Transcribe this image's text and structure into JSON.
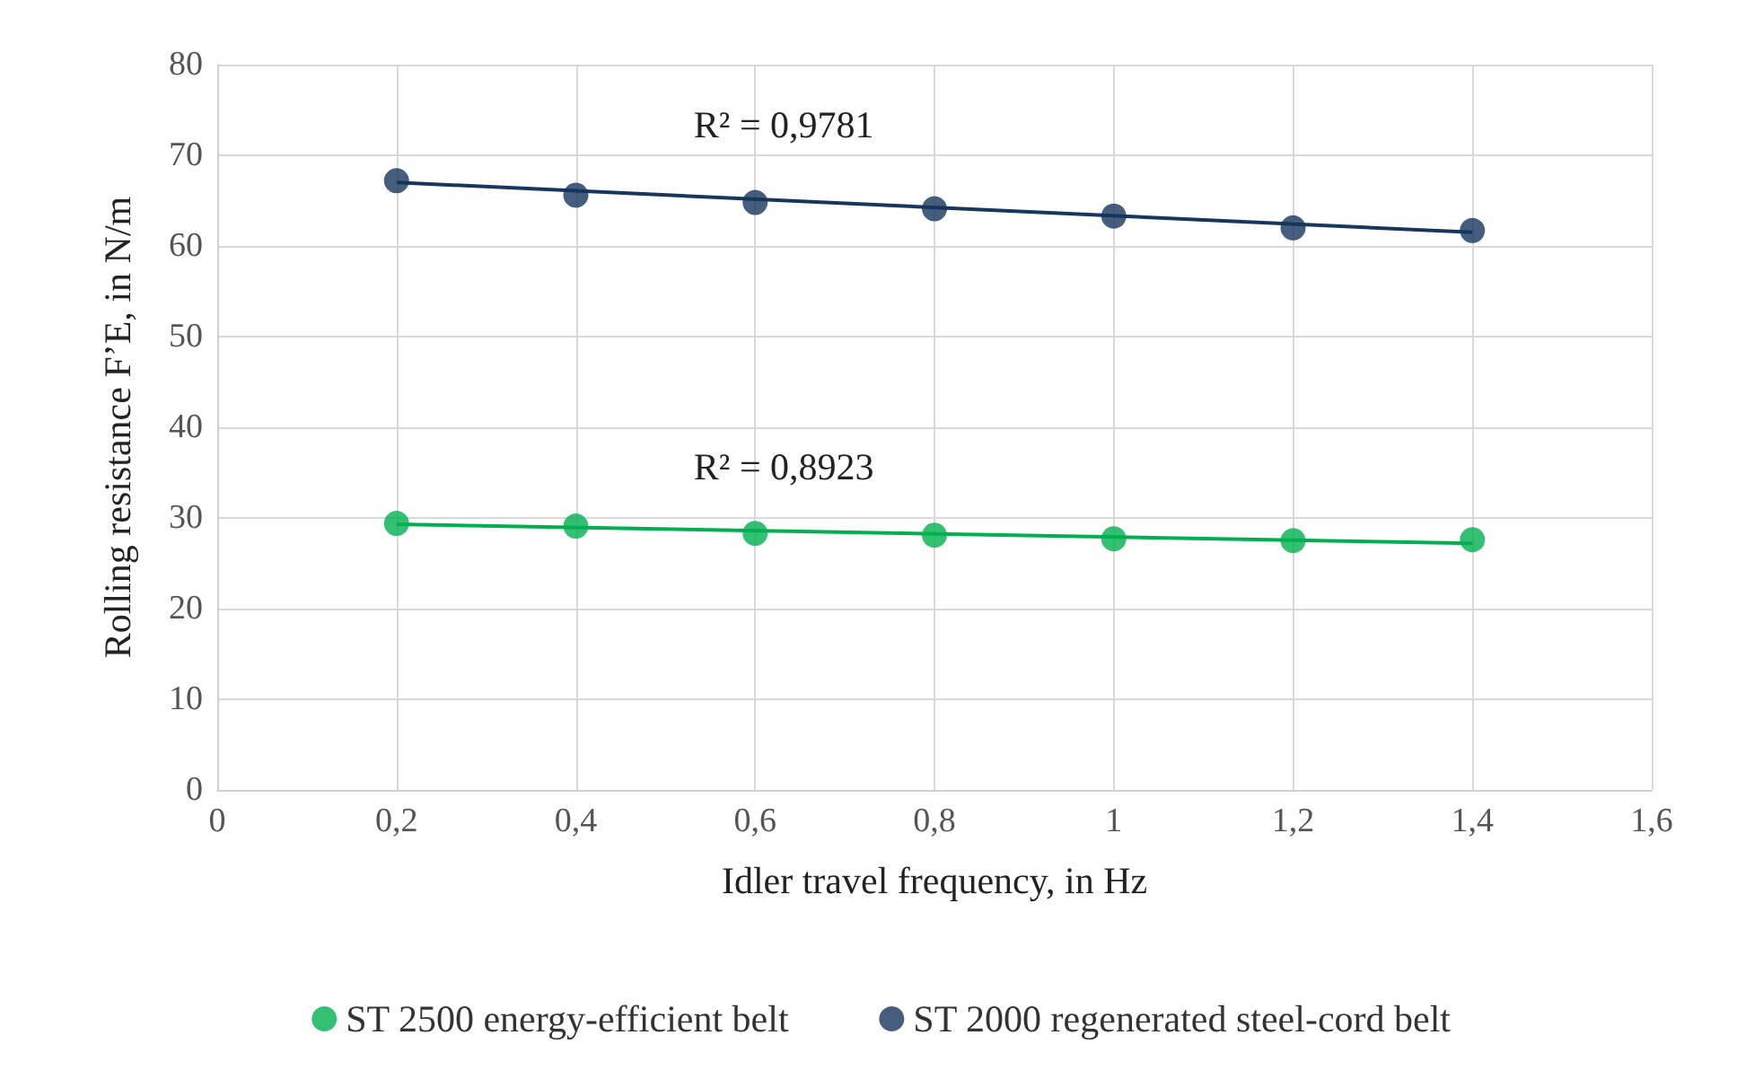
{
  "chart_data": {
    "type": "scatter",
    "xlabel": "Idler travel frequency, in Hz",
    "ylabel": "Rolling resistance F’E, in N/m",
    "x": [
      0.2,
      0.4,
      0.6,
      0.8,
      1.0,
      1.2,
      1.4
    ],
    "series": [
      {
        "name": "ST 2500 energy-efficient belt",
        "color": "#00b050",
        "values": [
          29.4,
          29.1,
          28.3,
          28.1,
          27.7,
          27.5,
          27.6
        ]
      },
      {
        "name": "ST 2000 regenerated steel-cord belt",
        "color": "#17365d",
        "values": [
          67.2,
          65.6,
          64.8,
          64.1,
          63.3,
          62.0,
          61.7
        ]
      },
      {
        "type": "line",
        "color": "#00b050",
        "marker": "none",
        "values": [
          29.3,
          null,
          null,
          null,
          null,
          null,
          27.2
        ]
      },
      {
        "type": "line",
        "color": "#17365d",
        "marker": "none",
        "values": [
          67.0,
          null,
          null,
          null,
          null,
          null,
          61.5
        ]
      }
    ],
    "annotations": [
      "R² = 0,9781",
      "R² = 0,8923"
    ],
    "xlim": [
      0,
      1.6
    ],
    "xticks": [
      0,
      {
        "value": 0.2,
        "label": "0,2"
      },
      {
        "value": 0.4,
        "label": "0,4"
      },
      {
        "value": 0.6,
        "label": "0,6"
      },
      {
        "value": 0.8,
        "label": "0,8"
      },
      1,
      {
        "value": 1.2,
        "label": "1,2"
      },
      {
        "value": 1.4,
        "label": "1,4"
      },
      {
        "value": 1.6,
        "label": "1,6"
      }
    ],
    "ylim": [
      0,
      80
    ],
    "yticks": [
      0,
      10,
      20,
      30,
      40,
      50,
      60,
      70,
      80
    ],
    "grid": true,
    "legend": "bottom",
    "marker": "circle",
    "line_style": "solid"
  }
}
